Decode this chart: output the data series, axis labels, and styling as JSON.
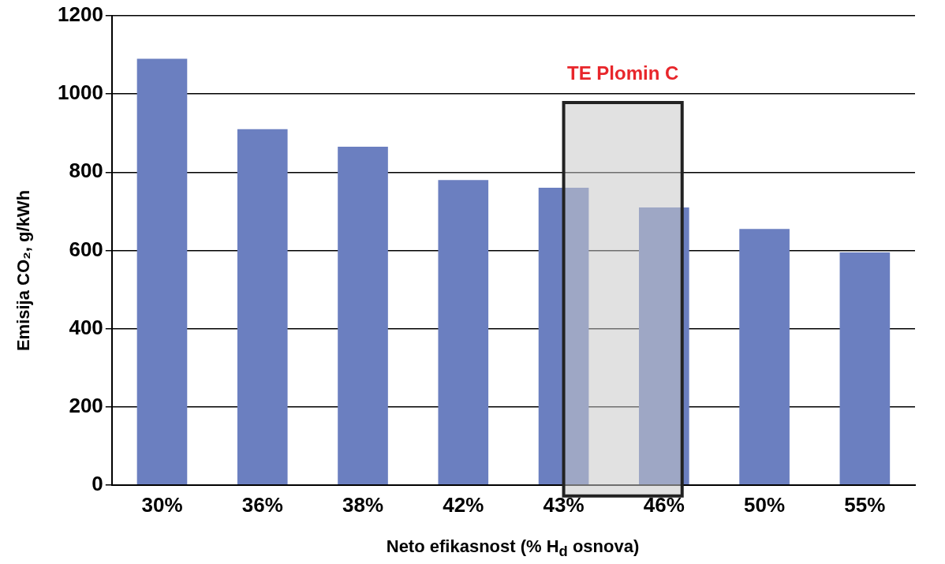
{
  "chart_data": {
    "type": "bar",
    "xlabel": "Neto efikasnost (% H$_{d}$ osnova)",
    "ylabel": "Emisija CO₂, g/kWh",
    "categories": [
      "30%",
      "36%",
      "38%",
      "42%",
      "43%",
      "46%",
      "50%",
      "55%"
    ],
    "values": [
      1090,
      910,
      865,
      780,
      760,
      710,
      655,
      595
    ],
    "color": "#6b7fc0",
    "ylim": [
      0,
      1200
    ],
    "yticks": [
      0,
      200,
      400,
      600,
      800,
      1000,
      1200
    ],
    "grid": "y",
    "legend": false,
    "bands": [
      {
        "axis": "x",
        "from": "43%",
        "to": "46%",
        "label": "TE Plomin C",
        "color": "#c8c8c8"
      }
    ]
  }
}
